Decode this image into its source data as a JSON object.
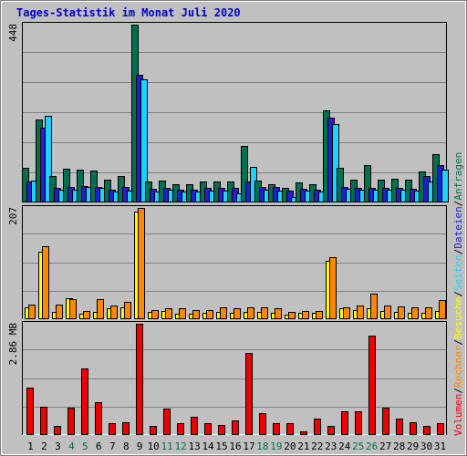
{
  "title": "Tages-Statistik im Monat Juli 2020",
  "colors": {
    "background": "#c0c0c0",
    "panel": "#c0c0c0",
    "grid": "#808080",
    "anfragen": "#007050",
    "dateien": "#2020d0",
    "seiten": "#20d0ff",
    "besuche": "#ffff00",
    "rechner": "#ff8800",
    "volumen": "#ee0000",
    "weekend_label": "#007050",
    "weekday_label": "#000000",
    "title": "#0000cc"
  },
  "chart_data": {
    "type": "bar",
    "days": [
      "1",
      "2",
      "3",
      "4",
      "5",
      "6",
      "7",
      "8",
      "9",
      "10",
      "11",
      "12",
      "13",
      "14",
      "15",
      "16",
      "17",
      "18",
      "19",
      "20",
      "21",
      "22",
      "23",
      "24",
      "25",
      "26",
      "27",
      "28",
      "29",
      "30",
      "31"
    ],
    "weekend_days": [
      "4",
      "5",
      "11",
      "12",
      "18",
      "19",
      "25",
      "26"
    ],
    "legend_right": [
      {
        "label": "Volumen",
        "color": "#ee0000"
      },
      {
        "label": "/",
        "color": "#000000"
      },
      {
        "label": "Rechner",
        "color": "#ff8800"
      },
      {
        "label": "/",
        "color": "#000000"
      },
      {
        "label": "Besuche",
        "color": "#ffff00"
      },
      {
        "label": "/",
        "color": "#000000"
      },
      {
        "label": "Seiten",
        "color": "#20d0ff"
      },
      {
        "label": "/",
        "color": "#000000"
      },
      {
        "label": "Dateien",
        "color": "#2020d0"
      },
      {
        "label": "/",
        "color": "#000000"
      },
      {
        "label": "Anfragen",
        "color": "#007050"
      }
    ],
    "panels": [
      {
        "id": "top",
        "max_label": "448",
        "max": 448,
        "series": [
          {
            "name": "Anfragen",
            "color": "#007050",
            "values": [
              85,
              208,
              64,
              82,
              80,
              78,
              55,
              65,
              448,
              50,
              52,
              45,
              45,
              50,
              50,
              50,
              140,
              52,
              45,
              35,
              48,
              45,
              230,
              85,
              55,
              92,
              55,
              58,
              55,
              77,
              120
            ]
          },
          {
            "name": "Dateien",
            "color": "#2020d0",
            "values": [
              50,
              188,
              35,
              36,
              40,
              38,
              30,
              36,
              320,
              32,
              35,
              30,
              30,
              34,
              34,
              34,
              50,
              38,
              36,
              28,
              32,
              30,
              212,
              36,
              34,
              34,
              34,
              34,
              32,
              64,
              92
            ]
          },
          {
            "name": "Seiten",
            "color": "#20d0ff",
            "values": [
              52,
              218,
              30,
              30,
              37,
              35,
              26,
              28,
              310,
              25,
              30,
              25,
              25,
              28,
              28,
              20,
              87,
              30,
              28,
              12,
              27,
              25,
              197,
              33,
              30,
              30,
              30,
              30,
              27,
              50,
              80
            ]
          }
        ]
      },
      {
        "id": "middle",
        "max_label": "207",
        "max": 207,
        "series": [
          {
            "name": "Besuche",
            "color": "#ffff00",
            "values": [
              20,
              125,
              12,
              38,
              8,
              12,
              18,
              20,
              200,
              12,
              14,
              8,
              8,
              10,
              12,
              10,
              12,
              12,
              10,
              6,
              10,
              10,
              107,
              18,
              16,
              18,
              14,
              12,
              10,
              10,
              14
            ]
          },
          {
            "name": "Rechner",
            "color": "#ff8800",
            "values": [
              26,
              135,
              26,
              36,
              13,
              36,
              24,
              30,
              207,
              16,
              18,
              18,
              15,
              16,
              20,
              18,
              20,
              20,
              18,
              12,
              14,
              14,
              115,
              20,
              24,
              46,
              24,
              22,
              20,
              20,
              34
            ]
          }
        ]
      },
      {
        "id": "bottom",
        "max_label": "2.86 MB",
        "max": 2.86,
        "series": [
          {
            "name": "Volumen",
            "color": "#ee0000",
            "values": [
              1.2,
              0.7,
              0.22,
              0.68,
              1.7,
              0.82,
              0.28,
              0.3,
              2.86,
              0.22,
              0.65,
              0.28,
              0.45,
              0.28,
              0.24,
              0.36,
              2.1,
              0.54,
              0.28,
              0.28,
              0.08,
              0.4,
              0.22,
              0.6,
              0.6,
              2.55,
              0.68,
              0.4,
              0.3,
              0.22,
              0.28
            ]
          }
        ]
      }
    ]
  }
}
